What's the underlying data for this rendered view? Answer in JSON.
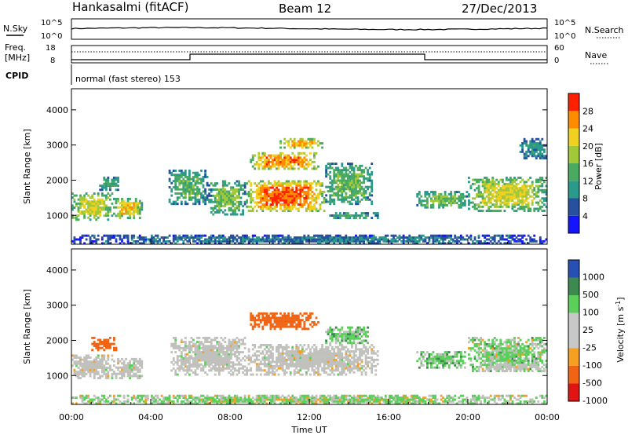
{
  "header": {
    "station": "Hankasalmi (fitACF)",
    "beam": "Beam 12",
    "date": "27/Dec/2013"
  },
  "strip_panels": {
    "nsky": {
      "label": "N.Sky",
      "ticks": [
        "10^5",
        "10^0"
      ],
      "right_ticks": [
        "10^5",
        "10^0"
      ],
      "right_label": "N.Search"
    },
    "freq": {
      "label_line1": "Freq.",
      "label_line2": "[MHz]",
      "ticks": [
        "18",
        "8"
      ],
      "right_ticks": [
        "60",
        "0"
      ],
      "right_label": "Nave"
    },
    "cpid": {
      "label": "CPID",
      "mode_text": "normal (fast stereo) 153"
    }
  },
  "colors": {
    "power": [
      "#1414ff",
      "#2850a0",
      "#2a9a8a",
      "#4aaa60",
      "#a0c838",
      "#f0d020",
      "#ff8c00",
      "#ff2000"
    ],
    "velocity": [
      "#e11414",
      "#f06414",
      "#f5a020",
      "#c8c8c8",
      "#c8c8c8",
      "#5ad05a",
      "#3c8a50",
      "#2850b4"
    ],
    "ground_scatter": "#c0c0bc"
  },
  "chart_data": [
    {
      "type": "heatmap",
      "name": "power",
      "xlabel": "",
      "ylabel": "Slant Range [km]",
      "xlim": [
        0,
        24
      ],
      "ylim": [
        180,
        4600
      ],
      "yticks": [
        1000,
        2000,
        3000,
        4000
      ],
      "colorbar": {
        "label": "Power [dB]",
        "ticks": [
          "4",
          "8",
          "12",
          "16",
          "20",
          "24",
          "28"
        ],
        "range": [
          0,
          32
        ]
      },
      "regions": [
        {
          "t": [
            0.0,
            2.1
          ],
          "r": [
            850,
            1650
          ],
          "level": 20
        },
        {
          "t": [
            2.1,
            3.6
          ],
          "r": [
            900,
            1500
          ],
          "level": 22
        },
        {
          "t": [
            1.4,
            2.4
          ],
          "r": [
            1700,
            2100
          ],
          "level": 12
        },
        {
          "t": [
            4.9,
            6.9
          ],
          "r": [
            1300,
            2300
          ],
          "level": 14
        },
        {
          "t": [
            6.9,
            8.8
          ],
          "r": [
            1000,
            2000
          ],
          "level": 16
        },
        {
          "t": [
            8.8,
            12.8
          ],
          "r": [
            1100,
            2000
          ],
          "level": 28
        },
        {
          "t": [
            9.0,
            12.5
          ],
          "r": [
            2300,
            2800
          ],
          "level": 26
        },
        {
          "t": [
            10.5,
            12.7
          ],
          "r": [
            2900,
            3200
          ],
          "level": 24
        },
        {
          "t": [
            12.8,
            15.2
          ],
          "r": [
            1300,
            2500
          ],
          "level": 15
        },
        {
          "t": [
            12.8,
            15.5
          ],
          "r": [
            900,
            1100
          ],
          "level": 12
        },
        {
          "t": [
            17.4,
            20.0
          ],
          "r": [
            1200,
            1700
          ],
          "level": 16
        },
        {
          "t": [
            20.0,
            24.0
          ],
          "r": [
            1100,
            2100
          ],
          "level": 20
        },
        {
          "t": [
            22.6,
            24.0
          ],
          "r": [
            2600,
            3200
          ],
          "level": 10
        },
        {
          "t": [
            0.0,
            24.0
          ],
          "r": [
            180,
            450
          ],
          "level": 8
        }
      ]
    },
    {
      "type": "heatmap",
      "name": "velocity",
      "xlabel": "Time UT",
      "ylabel": "Slant Range [km]",
      "xticks": [
        "00:00",
        "04:00",
        "08:00",
        "12:00",
        "16:00",
        "20:00",
        "00:00"
      ],
      "xlim": [
        0,
        24
      ],
      "ylim": [
        180,
        4600
      ],
      "yticks": [
        1000,
        2000,
        3000,
        4000
      ],
      "colorbar": {
        "label": "Velocity [m s^-1]",
        "ticks": [
          "-1000",
          "-500",
          "-100",
          "-25",
          "25",
          "100",
          "500",
          "1000"
        ]
      },
      "regions": [
        {
          "t": [
            0.0,
            2.1
          ],
          "r": [
            900,
            1600
          ],
          "level": 0
        },
        {
          "t": [
            1.0,
            2.3
          ],
          "r": [
            1700,
            2100
          ],
          "level": -300
        },
        {
          "t": [
            2.1,
            3.6
          ],
          "r": [
            900,
            1500
          ],
          "level": 0
        },
        {
          "t": [
            5.0,
            8.8
          ],
          "r": [
            1000,
            2100
          ],
          "level": 0
        },
        {
          "t": [
            8.8,
            15.5
          ],
          "r": [
            1000,
            1900
          ],
          "level": 0
        },
        {
          "t": [
            9.0,
            12.5
          ],
          "r": [
            2300,
            2800
          ],
          "level": -300
        },
        {
          "t": [
            12.8,
            15.0
          ],
          "r": [
            1900,
            2400
          ],
          "level": 80
        },
        {
          "t": [
            17.4,
            20.0
          ],
          "r": [
            1200,
            1700
          ],
          "level": 80
        },
        {
          "t": [
            20.0,
            24.0
          ],
          "r": [
            1100,
            2100
          ],
          "level": 60
        },
        {
          "t": [
            20.5,
            24.0
          ],
          "r": [
            1100,
            1400
          ],
          "level": 0
        },
        {
          "t": [
            0.0,
            24.0
          ],
          "r": [
            180,
            450
          ],
          "level": 40
        }
      ]
    }
  ]
}
